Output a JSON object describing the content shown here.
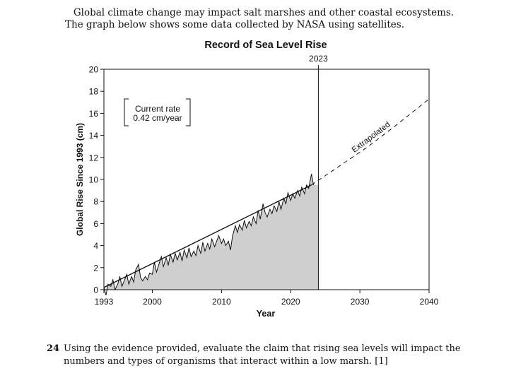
{
  "intro": {
    "line1": "Global climate change may impact salt marshes and other coastal ecosystems.",
    "line2": "The graph below shows some data collected by NASA using satellites."
  },
  "chart_data": {
    "type": "area",
    "title": "Record of Sea Level Rise",
    "xlabel": "Year",
    "ylabel": "Global Rise Since 1993 (cm)",
    "xlim": [
      1993,
      2040
    ],
    "ylim": [
      0,
      20
    ],
    "x_ticks": [
      1993,
      2000,
      2010,
      2020,
      2030,
      2040
    ],
    "y_ticks": [
      0,
      2,
      4,
      6,
      8,
      10,
      12,
      14,
      16,
      18,
      20
    ],
    "marker_year": 2023,
    "marker_label": "2023",
    "rate_label_line1": "Current rate",
    "rate_label_line2": "0.42 cm/year",
    "extrapolated_label": "Extrapolated",
    "trend_observed": [
      [
        1993,
        0.2
      ],
      [
        2023,
        9.5
      ]
    ],
    "extrapolated": [
      [
        2023,
        9.5
      ],
      [
        2027,
        11.2
      ],
      [
        2031,
        12.9
      ],
      [
        2035,
        14.8
      ],
      [
        2040,
        17.3
      ]
    ],
    "observed": [
      [
        1993.0,
        0.2
      ],
      [
        1993.3,
        -0.5
      ],
      [
        1993.6,
        0.5
      ],
      [
        1994.0,
        0.3
      ],
      [
        1994.3,
        0.9
      ],
      [
        1994.6,
        0.0
      ],
      [
        1995.0,
        0.5
      ],
      [
        1995.3,
        1.2
      ],
      [
        1995.6,
        0.3
      ],
      [
        1996.0,
        0.9
      ],
      [
        1996.3,
        1.4
      ],
      [
        1996.6,
        0.5
      ],
      [
        1997.0,
        1.2
      ],
      [
        1997.3,
        0.7
      ],
      [
        1997.6,
        1.8
      ],
      [
        1998.0,
        2.3
      ],
      [
        1998.3,
        1.1
      ],
      [
        1998.6,
        0.8
      ],
      [
        1999.0,
        1.2
      ],
      [
        1999.3,
        0.9
      ],
      [
        1999.6,
        1.5
      ],
      [
        2000.0,
        1.4
      ],
      [
        2000.3,
        2.5
      ],
      [
        2000.6,
        1.6
      ],
      [
        2001.0,
        2.4
      ],
      [
        2001.3,
        3.0
      ],
      [
        2001.6,
        2.1
      ],
      [
        2002.0,
        2.9
      ],
      [
        2002.3,
        2.2
      ],
      [
        2002.6,
        3.2
      ],
      [
        2003.0,
        2.5
      ],
      [
        2003.3,
        3.3
      ],
      [
        2003.6,
        2.7
      ],
      [
        2004.0,
        3.4
      ],
      [
        2004.3,
        2.6
      ],
      [
        2004.6,
        3.6
      ],
      [
        2005.0,
        2.9
      ],
      [
        2005.3,
        3.8
      ],
      [
        2005.6,
        3.0
      ],
      [
        2006.0,
        3.5
      ],
      [
        2006.3,
        3.1
      ],
      [
        2006.6,
        4.0
      ],
      [
        2007.0,
        3.3
      ],
      [
        2007.3,
        4.3
      ],
      [
        2007.6,
        3.5
      ],
      [
        2008.0,
        4.2
      ],
      [
        2008.3,
        3.7
      ],
      [
        2008.6,
        4.6
      ],
      [
        2009.0,
        3.9
      ],
      [
        2009.3,
        4.4
      ],
      [
        2009.6,
        4.9
      ],
      [
        2010.0,
        4.2
      ],
      [
        2010.3,
        4.6
      ],
      [
        2010.6,
        4.0
      ],
      [
        2011.0,
        4.4
      ],
      [
        2011.3,
        3.6
      ],
      [
        2011.6,
        4.9
      ],
      [
        2012.0,
        5.8
      ],
      [
        2012.3,
        5.2
      ],
      [
        2012.6,
        5.9
      ],
      [
        2013.0,
        5.4
      ],
      [
        2013.3,
        6.3
      ],
      [
        2013.6,
        5.6
      ],
      [
        2014.0,
        6.2
      ],
      [
        2014.3,
        5.8
      ],
      [
        2014.6,
        6.6
      ],
      [
        2015.0,
        6.0
      ],
      [
        2015.3,
        7.2
      ],
      [
        2015.6,
        6.4
      ],
      [
        2016.0,
        7.8
      ],
      [
        2016.3,
        7.0
      ],
      [
        2016.6,
        6.6
      ],
      [
        2017.0,
        7.3
      ],
      [
        2017.3,
        6.9
      ],
      [
        2017.6,
        7.6
      ],
      [
        2018.0,
        7.1
      ],
      [
        2018.3,
        8.0
      ],
      [
        2018.6,
        7.3
      ],
      [
        2019.0,
        8.3
      ],
      [
        2019.3,
        7.8
      ],
      [
        2019.6,
        8.8
      ],
      [
        2020.0,
        8.1
      ],
      [
        2020.3,
        8.7
      ],
      [
        2020.6,
        8.3
      ],
      [
        2021.0,
        9.0
      ],
      [
        2021.3,
        8.5
      ],
      [
        2021.6,
        9.3
      ],
      [
        2022.0,
        8.7
      ],
      [
        2022.3,
        9.5
      ],
      [
        2022.6,
        9.2
      ],
      [
        2023.0,
        10.5
      ],
      [
        2023.3,
        9.5
      ]
    ]
  },
  "question": {
    "number": "24",
    "text": "Using the evidence provided, evaluate the claim that rising sea levels will impact the numbers and types of organisms that interact within a low marsh.  [1]"
  }
}
